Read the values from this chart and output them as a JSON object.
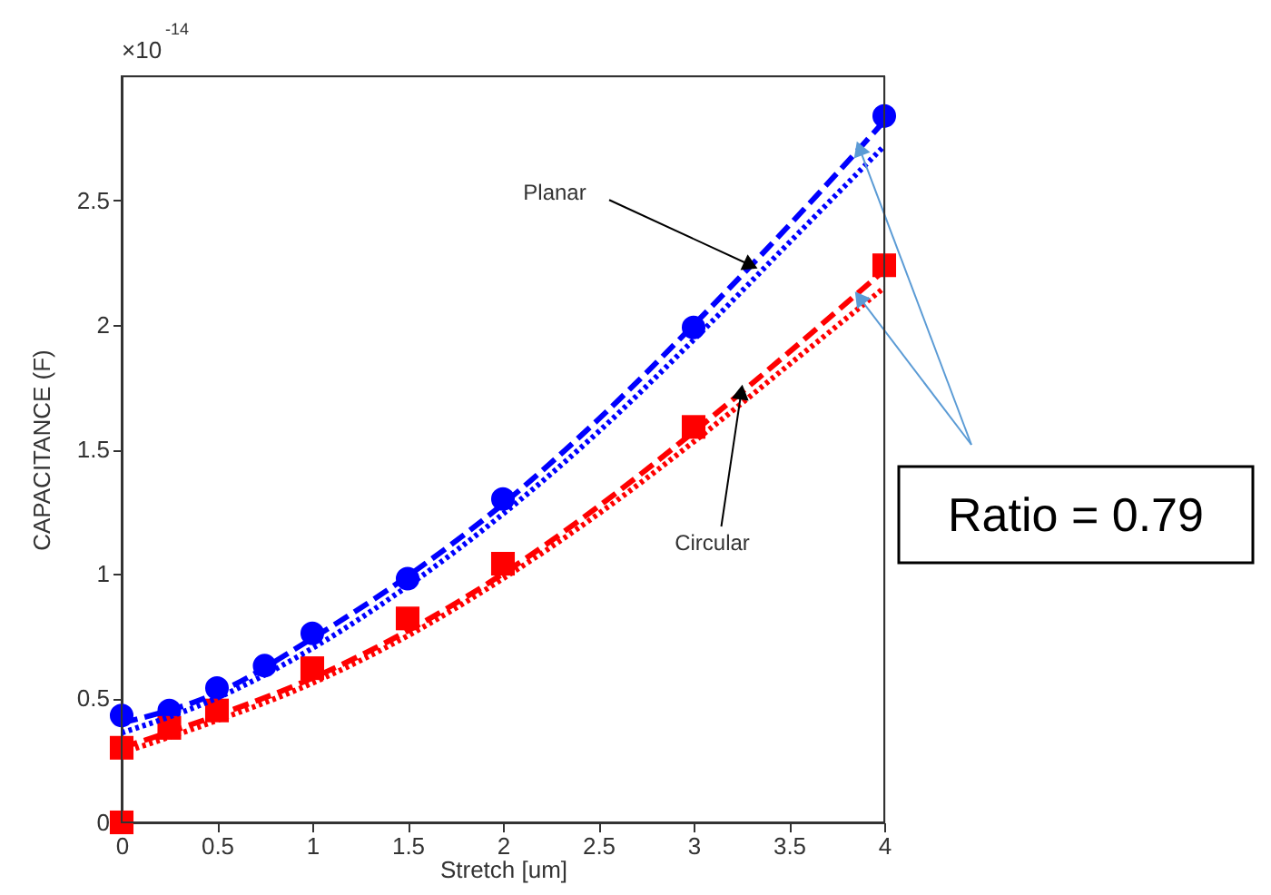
{
  "chart_data": {
    "type": "scatter",
    "xlabel": "Stretch [um]",
    "ylabel": "CAPACITANCE (F)",
    "xlim": [
      0,
      4
    ],
    "ylim": [
      0,
      3
    ],
    "xticks": [
      0,
      0.5,
      1,
      1.5,
      2,
      2.5,
      3,
      3.5,
      4
    ],
    "yticks": [
      0,
      0.5,
      1,
      1.5,
      2,
      2.5
    ],
    "grid": false,
    "series": [
      {
        "marker": "circle",
        "color": "#0000ff",
        "x": [
          0,
          0.25,
          0.5,
          0.75,
          1,
          1.5,
          2,
          3,
          4
        ],
        "values": [
          0.43,
          0.45,
          0.54,
          0.63,
          0.76,
          0.98,
          1.3,
          1.99,
          2.84
        ]
      },
      {
        "marker": "square",
        "color": "#ff0000",
        "x": [
          0,
          0,
          0.25,
          0.5,
          1,
          1.5,
          2,
          3,
          4
        ],
        "values": [
          0,
          0.3,
          0.38,
          0.45,
          0.62,
          0.82,
          1.04,
          1.59,
          2.24
        ]
      },
      {
        "type": "line",
        "line_style": "dashed",
        "color": "#0000ff",
        "x": [
          0,
          0.5,
          1,
          1.5,
          2,
          2.5,
          3,
          3.5,
          4
        ],
        "values": [
          0.4,
          0.52,
          0.74,
          0.99,
          1.28,
          1.62,
          2.0,
          2.4,
          2.82
        ]
      },
      {
        "type": "line",
        "line_style": "dotted",
        "color": "#0000ff",
        "x": [
          0,
          0.5,
          1,
          1.5,
          2,
          2.5,
          3,
          3.5,
          4
        ],
        "values": [
          0.36,
          0.5,
          0.7,
          0.95,
          1.24,
          1.57,
          1.94,
          2.33,
          2.72
        ]
      },
      {
        "type": "line",
        "line_style": "dashed",
        "color": "#ff0000",
        "x": [
          0,
          0.5,
          1,
          1.5,
          2,
          2.5,
          3,
          3.5,
          4
        ],
        "values": [
          0.3,
          0.43,
          0.58,
          0.77,
          1.0,
          1.27,
          1.57,
          1.89,
          2.22
        ]
      },
      {
        "type": "line",
        "line_style": "dotted",
        "color": "#ff0000",
        "x": [
          0,
          0.5,
          1,
          1.5,
          2,
          2.5,
          3,
          3.5,
          4
        ],
        "values": [
          0.28,
          0.41,
          0.56,
          0.75,
          0.98,
          1.24,
          1.53,
          1.84,
          2.15
        ]
      }
    ],
    "annotations": [
      "×10$^{-14}$",
      {
        "text": "Planar",
        "x": 3.3,
        "y": 2.24
      },
      {
        "text": "Circular",
        "x": 3.25,
        "y": 1.73
      },
      {
        "text": "Ratio = 0.79",
        "x": 3.87,
        "y": 2.71
      }
    ]
  }
}
